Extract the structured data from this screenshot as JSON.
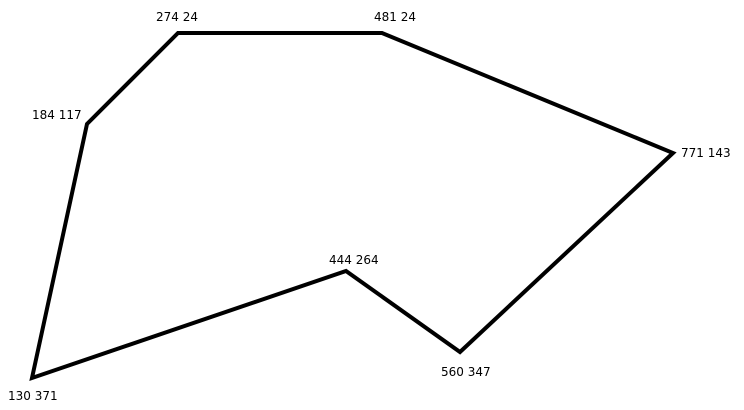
{
  "diagram": {
    "stroke_color": "#000000",
    "background_color": "#ffffff",
    "vertices": [
      {
        "label": "274 24"
      },
      {
        "label": "481 24"
      },
      {
        "label": "771 143"
      },
      {
        "label": "560 347"
      },
      {
        "label": "444 264"
      },
      {
        "label": "130 371"
      },
      {
        "label": "184 117"
      }
    ]
  }
}
